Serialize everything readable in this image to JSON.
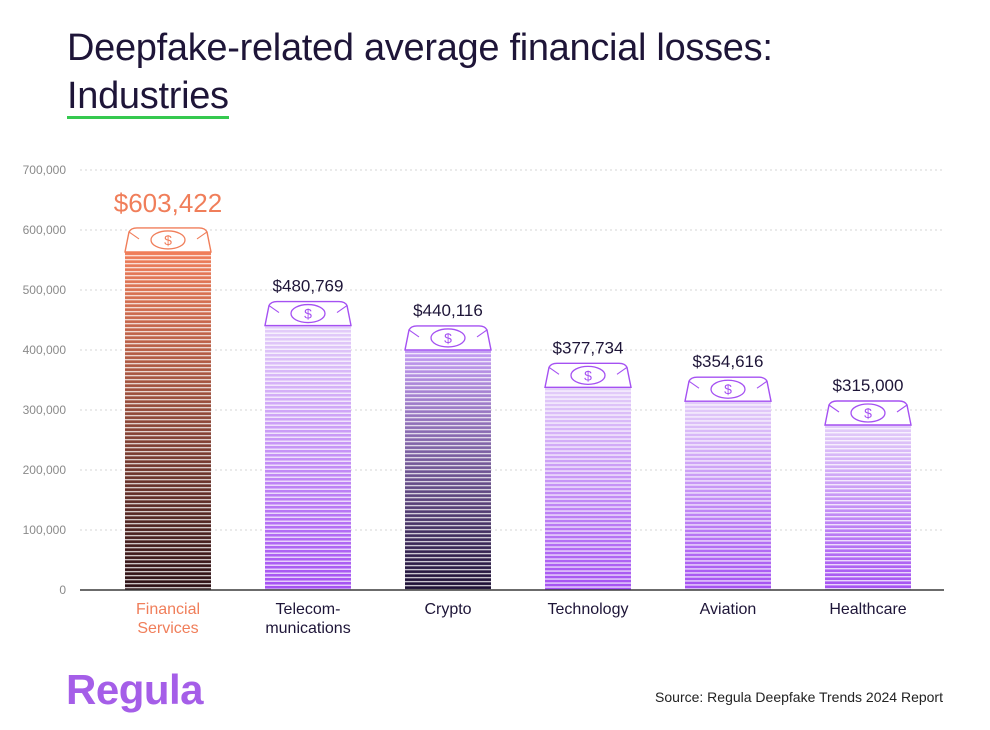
{
  "title": {
    "line1": "Deepfake-related average financial losses:",
    "line2": "Industries"
  },
  "chart_data": {
    "type": "bar",
    "categories": [
      [
        "Financial",
        "Services"
      ],
      [
        "Telecom-",
        "munications"
      ],
      [
        "Crypto"
      ],
      [
        "Technology"
      ],
      [
        "Aviation"
      ],
      [
        "Healthcare"
      ]
    ],
    "values": [
      603422,
      480769,
      440116,
      377734,
      354616,
      315000
    ],
    "value_labels": [
      "$603,422",
      "$480,769",
      "$440,116",
      "$377,734",
      "$354,616",
      "$315,000"
    ],
    "ylim": [
      0,
      700000
    ],
    "yticks": [
      0,
      100000,
      200000,
      300000,
      400000,
      500000,
      600000,
      700000
    ],
    "ytick_labels": [
      "0",
      "100,000",
      "200,000",
      "300,000",
      "400,000",
      "500,000",
      "600,000",
      "700,000"
    ],
    "grid": true,
    "highlight_index": 0,
    "bar_styles": [
      "coral-dark",
      "violet",
      "violet-dark",
      "violet",
      "violet",
      "violet"
    ],
    "colors": {
      "highlight": "#f07e5a",
      "highlight_bottom": "#2a0f14",
      "violet_top": "#e3cef9",
      "violet_bottom": "#a551f2",
      "dark_top": "#c49cf4",
      "dark_bottom": "#1b0e33",
      "text": "#1e1538",
      "axis_text": "#8a8a8a",
      "grid": "#d6d6d6"
    }
  },
  "footer": {
    "logo": "Regula",
    "source": "Source: Regula Deepfake Trends 2024 Report"
  }
}
